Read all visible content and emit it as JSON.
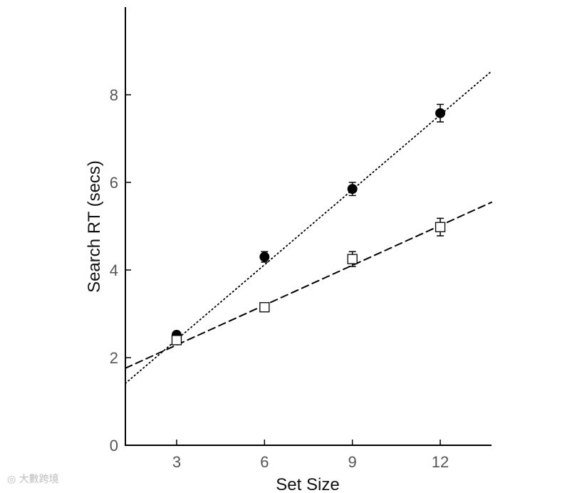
{
  "chart_data": {
    "type": "scatter",
    "xlabel": "Set Size",
    "ylabel": "Search RT (secs)",
    "xlim": [
      1.25,
      13.75
    ],
    "ylim": [
      0,
      10
    ],
    "xticks": [
      3,
      6,
      9,
      12
    ],
    "yticks": [
      0,
      2,
      4,
      6,
      8
    ],
    "grid": false,
    "series": [
      {
        "marker": "filled-circle",
        "color": "#000000",
        "line_style": "dotted",
        "x": [
          3,
          6,
          9,
          12
        ],
        "y": [
          2.52,
          4.3,
          5.85,
          7.58
        ],
        "error": [
          0.07,
          0.12,
          0.15,
          0.2
        ],
        "fit": {
          "intercept": 0.7,
          "slope": 0.57
        }
      },
      {
        "marker": "open-square",
        "color": "#000000",
        "line_style": "dashed",
        "x": [
          3,
          6,
          9,
          12
        ],
        "y": [
          2.4,
          3.15,
          4.25,
          4.98
        ],
        "error": [
          0.06,
          0.09,
          0.17,
          0.2
        ],
        "fit": {
          "intercept": 1.38,
          "slope": 0.303
        }
      }
    ]
  },
  "watermark": {
    "text": "大數跨境"
  }
}
